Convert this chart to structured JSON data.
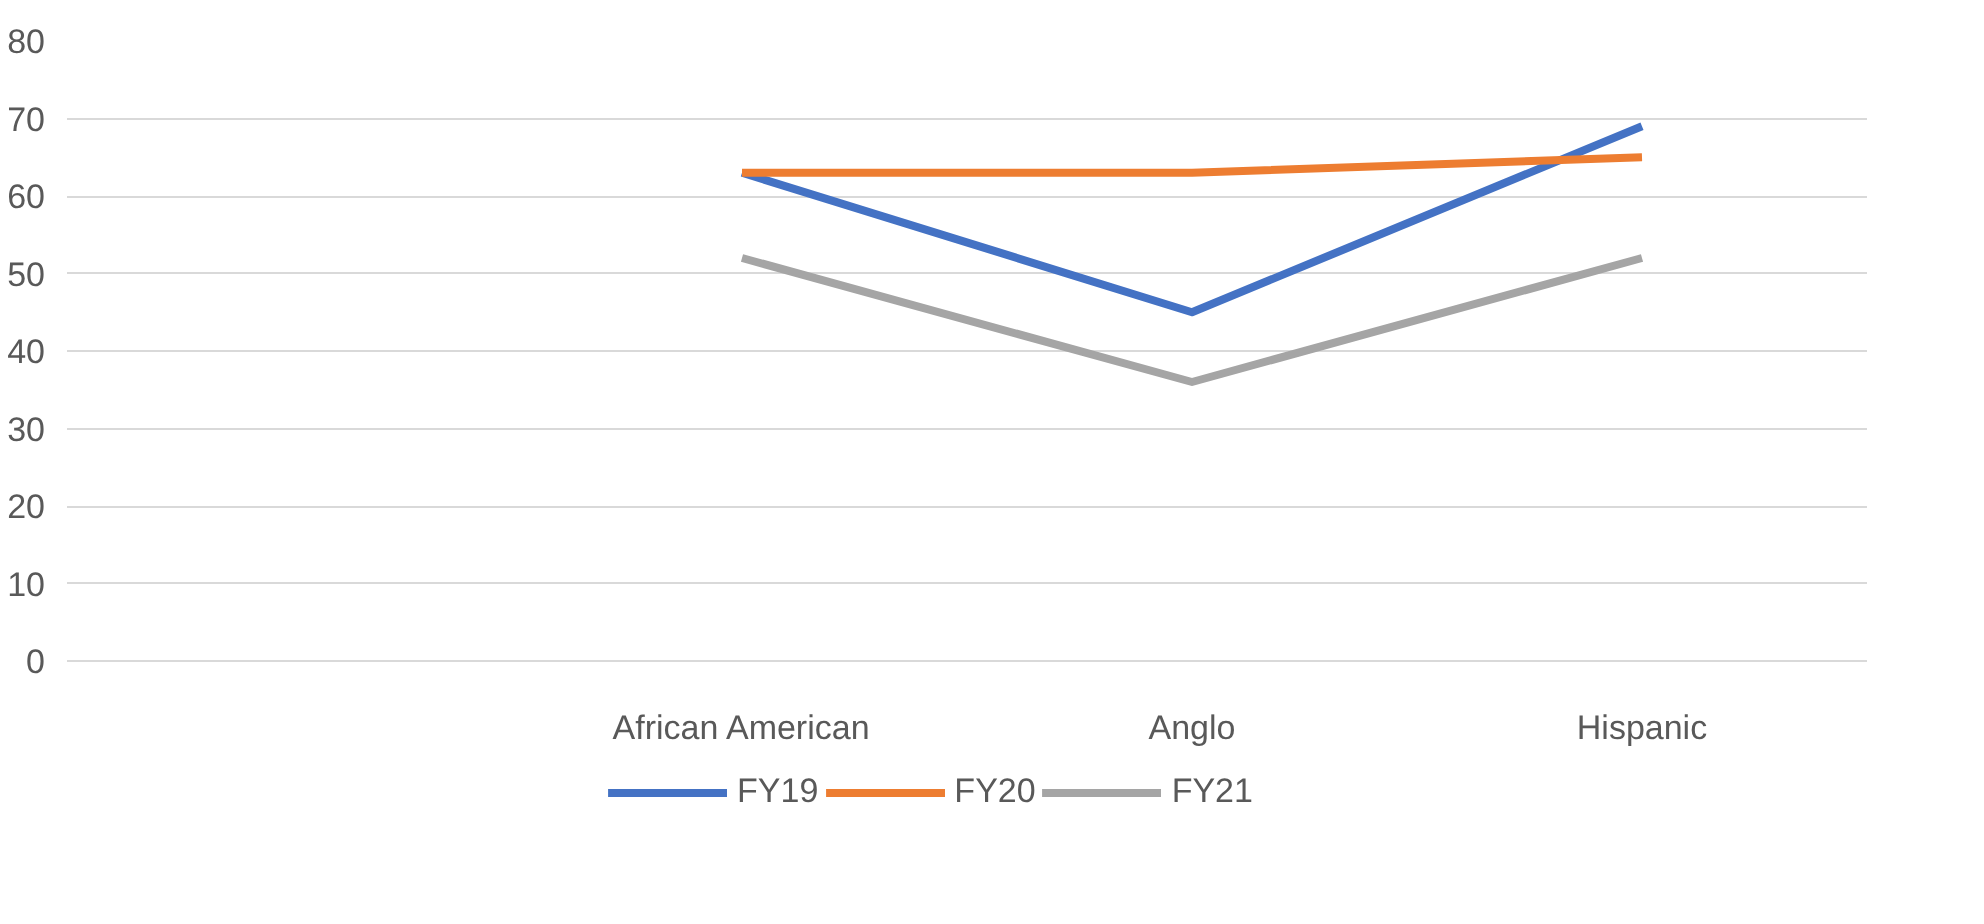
{
  "chart_data": {
    "type": "line",
    "categories": [
      null,
      "African American",
      "Anglo",
      "Hispanic"
    ],
    "series": [
      {
        "name": "FY19",
        "color": "#4472c4",
        "values": [
          null,
          63,
          45,
          69
        ]
      },
      {
        "name": "FY20",
        "color": "#ed7d31",
        "values": [
          null,
          63,
          63,
          65
        ]
      },
      {
        "name": "FY21",
        "color": "#a5a5a5",
        "values": [
          null,
          52,
          36,
          52
        ]
      }
    ],
    "ylim": [
      0,
      80
    ],
    "yticks": [
      0,
      10,
      20,
      30,
      40,
      50,
      60,
      70,
      80
    ],
    "grid": "y",
    "legend": "bottom",
    "marker": "none",
    "line_style": "solid"
  }
}
